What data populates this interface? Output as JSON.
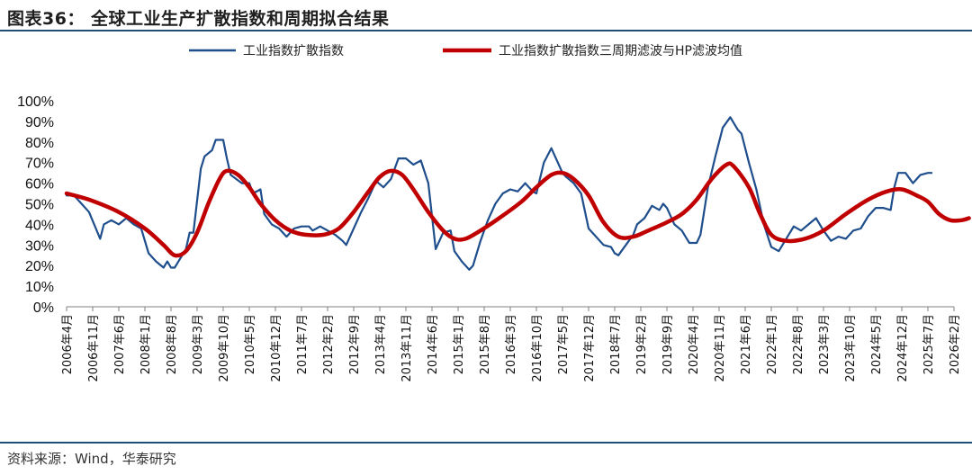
{
  "title": "图表36： 全球工业生产扩散指数和周期拟合结果",
  "source": "资料来源：Wind，华泰研究",
  "colors": {
    "series_raw": "#1f4e8c",
    "series_fit": "#c00000",
    "rule": "#1f4e79",
    "axis": "#808080"
  },
  "chart_data": {
    "type": "line",
    "ylim": [
      0,
      100
    ],
    "y_ticks": [
      "0%",
      "10%",
      "20%",
      "30%",
      "40%",
      "50%",
      "60%",
      "70%",
      "80%",
      "90%",
      "100%"
    ],
    "x_ticks": [
      "2006年4月",
      "2006年11月",
      "2007年6月",
      "2008年1月",
      "2008年8月",
      "2009年3月",
      "2009年10月",
      "2010年5月",
      "2010年12月",
      "2011年7月",
      "2012年2月",
      "2012年9月",
      "2013年4月",
      "2013年11月",
      "2014年6月",
      "2015年1月",
      "2015年8月",
      "2016年3月",
      "2016年10月",
      "2017年5月",
      "2017年12月",
      "2018年7月",
      "2019年2月",
      "2019年9月",
      "2020年4月",
      "2020年11月",
      "2021年6月",
      "2022年1月",
      "2022年8月",
      "2023年3月",
      "2023年10月",
      "2024年5月",
      "2024年12月",
      "2025年7月",
      "2026年2月"
    ],
    "legend_position": "top",
    "grid": false,
    "series": [
      {
        "name": "工业指数扩散指数",
        "style": "thin",
        "points": [
          [
            "2006-04",
            54
          ],
          [
            "2006-06",
            54
          ],
          [
            "2006-08",
            50
          ],
          [
            "2006-10",
            46
          ],
          [
            "2007-01",
            33
          ],
          [
            "2007-02",
            40
          ],
          [
            "2007-04",
            42
          ],
          [
            "2007-06",
            40
          ],
          [
            "2007-08",
            43
          ],
          [
            "2007-10",
            40
          ],
          [
            "2007-12",
            38
          ],
          [
            "2008-02",
            26
          ],
          [
            "2008-04",
            22
          ],
          [
            "2008-06",
            19
          ],
          [
            "2008-07",
            22
          ],
          [
            "2008-08",
            19
          ],
          [
            "2008-09",
            19
          ],
          [
            "2008-10",
            22
          ],
          [
            "2008-12",
            28
          ],
          [
            "2009-01",
            36
          ],
          [
            "2009-02",
            36
          ],
          [
            "2009-04",
            67
          ],
          [
            "2009-05",
            73
          ],
          [
            "2009-07",
            76
          ],
          [
            "2009-08",
            81
          ],
          [
            "2009-10",
            81
          ],
          [
            "2009-11",
            72
          ],
          [
            "2009-12",
            64
          ],
          [
            "2010-03",
            60
          ],
          [
            "2010-05",
            60
          ],
          [
            "2010-06",
            55
          ],
          [
            "2010-08",
            57
          ],
          [
            "2010-09",
            45
          ],
          [
            "2010-11",
            40
          ],
          [
            "2011-01",
            38
          ],
          [
            "2011-03",
            34
          ],
          [
            "2011-05",
            38
          ],
          [
            "2011-07",
            39
          ],
          [
            "2011-09",
            39
          ],
          [
            "2011-10",
            37
          ],
          [
            "2011-12",
            39
          ],
          [
            "2012-02",
            37
          ],
          [
            "2012-04",
            35
          ],
          [
            "2012-06",
            32
          ],
          [
            "2012-07",
            30
          ],
          [
            "2012-09",
            38
          ],
          [
            "2012-11",
            46
          ],
          [
            "2013-01",
            53
          ],
          [
            "2013-03",
            61
          ],
          [
            "2013-05",
            58
          ],
          [
            "2013-07",
            62
          ],
          [
            "2013-09",
            72
          ],
          [
            "2013-11",
            72
          ],
          [
            "2014-01",
            69
          ],
          [
            "2014-03",
            71
          ],
          [
            "2014-05",
            60
          ],
          [
            "2014-07",
            28
          ],
          [
            "2014-09",
            36
          ],
          [
            "2014-11",
            37
          ],
          [
            "2014-12",
            27
          ],
          [
            "2015-02",
            22
          ],
          [
            "2015-04",
            18
          ],
          [
            "2015-05",
            20
          ],
          [
            "2015-07",
            32
          ],
          [
            "2015-09",
            42
          ],
          [
            "2015-11",
            50
          ],
          [
            "2016-01",
            55
          ],
          [
            "2016-03",
            57
          ],
          [
            "2016-05",
            56
          ],
          [
            "2016-07",
            60
          ],
          [
            "2016-09",
            56
          ],
          [
            "2016-10",
            55
          ],
          [
            "2016-12",
            70
          ],
          [
            "2017-02",
            77
          ],
          [
            "2017-03",
            73
          ],
          [
            "2017-05",
            65
          ],
          [
            "2017-06",
            63
          ],
          [
            "2017-08",
            60
          ],
          [
            "2017-10",
            55
          ],
          [
            "2017-12",
            38
          ],
          [
            "2018-02",
            34
          ],
          [
            "2018-04",
            30
          ],
          [
            "2018-06",
            29
          ],
          [
            "2018-07",
            26
          ],
          [
            "2018-08",
            25
          ],
          [
            "2018-10",
            30
          ],
          [
            "2018-12",
            35
          ],
          [
            "2019-01",
            40
          ],
          [
            "2019-03",
            43
          ],
          [
            "2019-05",
            49
          ],
          [
            "2019-07",
            47
          ],
          [
            "2019-08",
            50
          ],
          [
            "2019-09",
            48
          ],
          [
            "2019-11",
            40
          ],
          [
            "2020-01",
            37
          ],
          [
            "2020-03",
            31
          ],
          [
            "2020-05",
            31
          ],
          [
            "2020-06",
            35
          ],
          [
            "2020-08",
            58
          ],
          [
            "2020-10",
            73
          ],
          [
            "2020-12",
            87
          ],
          [
            "2021-02",
            92
          ],
          [
            "2021-04",
            86
          ],
          [
            "2021-05",
            84
          ],
          [
            "2021-07",
            70
          ],
          [
            "2021-09",
            57
          ],
          [
            "2021-11",
            40
          ],
          [
            "2022-01",
            29
          ],
          [
            "2022-03",
            27
          ],
          [
            "2022-05",
            33
          ],
          [
            "2022-07",
            39
          ],
          [
            "2022-09",
            37
          ],
          [
            "2022-11",
            40
          ],
          [
            "2023-01",
            43
          ],
          [
            "2023-03",
            37
          ],
          [
            "2023-05",
            32
          ],
          [
            "2023-07",
            34
          ],
          [
            "2023-09",
            33
          ],
          [
            "2023-11",
            37
          ],
          [
            "2024-01",
            38
          ],
          [
            "2024-03",
            44
          ],
          [
            "2024-05",
            48
          ],
          [
            "2024-07",
            48
          ],
          [
            "2024-09",
            47
          ],
          [
            "2024-10",
            58
          ],
          [
            "2024-11",
            65
          ],
          [
            "2025-01",
            65
          ],
          [
            "2025-03",
            60
          ],
          [
            "2025-05",
            64
          ],
          [
            "2025-07",
            65
          ],
          [
            "2025-08",
            65
          ]
        ]
      },
      {
        "name": "工业指数扩散指数三周期滤波与HP滤波均值",
        "style": "thick",
        "points": [
          [
            "2006-04",
            55
          ],
          [
            "2006-10",
            52
          ],
          [
            "2007-06",
            46
          ],
          [
            "2008-01",
            38
          ],
          [
            "2008-06",
            30
          ],
          [
            "2008-09",
            25
          ],
          [
            "2008-12",
            27
          ],
          [
            "2009-03",
            36
          ],
          [
            "2009-06",
            50
          ],
          [
            "2009-09",
            62
          ],
          [
            "2009-11",
            66
          ],
          [
            "2010-02",
            64
          ],
          [
            "2010-05",
            58
          ],
          [
            "2010-08",
            50
          ],
          [
            "2010-12",
            42
          ],
          [
            "2011-04",
            37
          ],
          [
            "2011-08",
            35
          ],
          [
            "2012-01",
            35
          ],
          [
            "2012-05",
            38
          ],
          [
            "2012-09",
            46
          ],
          [
            "2013-01",
            56
          ],
          [
            "2013-04",
            63
          ],
          [
            "2013-07",
            66
          ],
          [
            "2013-10",
            64
          ],
          [
            "2014-01",
            57
          ],
          [
            "2014-05",
            46
          ],
          [
            "2014-09",
            37
          ],
          [
            "2014-12",
            33
          ],
          [
            "2015-03",
            33
          ],
          [
            "2015-07",
            37
          ],
          [
            "2015-12",
            43
          ],
          [
            "2016-06",
            51
          ],
          [
            "2016-10",
            58
          ],
          [
            "2017-02",
            64
          ],
          [
            "2017-05",
            65
          ],
          [
            "2017-08",
            62
          ],
          [
            "2017-12",
            54
          ],
          [
            "2018-04",
            41
          ],
          [
            "2018-08",
            34
          ],
          [
            "2018-12",
            34
          ],
          [
            "2019-04",
            37
          ],
          [
            "2019-09",
            41
          ],
          [
            "2020-01",
            45
          ],
          [
            "2020-05",
            52
          ],
          [
            "2020-09",
            62
          ],
          [
            "2021-01",
            69
          ],
          [
            "2021-03",
            68
          ],
          [
            "2021-07",
            58
          ],
          [
            "2021-10",
            45
          ],
          [
            "2022-01",
            35
          ],
          [
            "2022-05",
            32
          ],
          [
            "2022-10",
            33
          ],
          [
            "2023-03",
            37
          ],
          [
            "2023-09",
            45
          ],
          [
            "2024-03",
            52
          ],
          [
            "2024-08",
            56
          ],
          [
            "2024-12",
            57
          ],
          [
            "2025-04",
            54
          ],
          [
            "2025-07",
            51
          ],
          [
            "2025-10",
            45
          ],
          [
            "2026-01",
            42
          ],
          [
            "2026-04",
            42
          ],
          [
            "2026-06",
            43
          ]
        ]
      }
    ]
  }
}
